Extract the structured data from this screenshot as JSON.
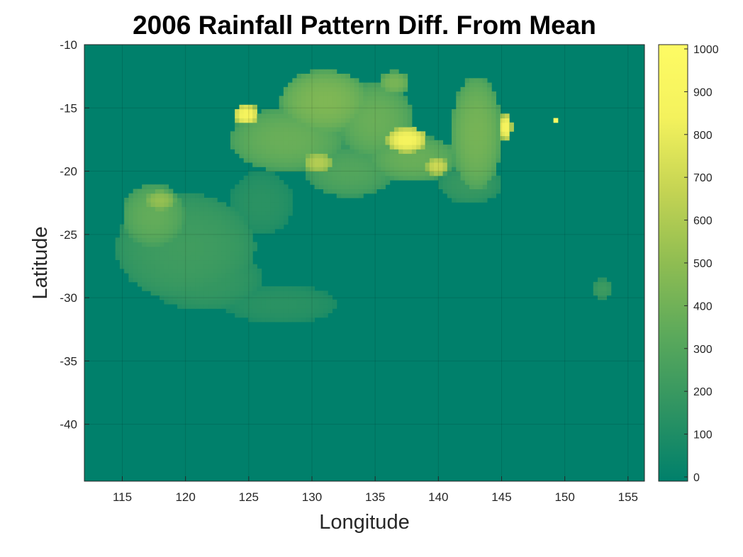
{
  "chart_data": {
    "type": "heatmap",
    "title": "2006 Rainfall Pattern Diff. From Mean",
    "xlabel": "Longitude",
    "ylabel": "Latitude",
    "xlim": [
      112,
      156.3
    ],
    "ylim": [
      -44.5,
      -10
    ],
    "xticks": [
      115,
      120,
      125,
      130,
      135,
      140,
      145,
      150,
      155
    ],
    "yticks": [
      -10,
      -15,
      -20,
      -25,
      -30,
      -35,
      -40
    ],
    "grid": true,
    "colorbar": {
      "location": "right",
      "limits": [
        0,
        1000
      ],
      "ticks": [
        0,
        100,
        200,
        300,
        400,
        500,
        600,
        700,
        800,
        900,
        1000
      ],
      "colormap": [
        "#00806b",
        "#2f9462",
        "#5ba95b",
        "#8fbd52",
        "#c5d453",
        "#f4f25d",
        "#fefb64"
      ]
    },
    "background_value": 0,
    "regions": [
      {
        "lon": 120,
        "lat": -26,
        "rlon": 5.5,
        "rlat": 4.2,
        "value": 230
      },
      {
        "lon": 117.5,
        "lat": -23.5,
        "rlon": 2.5,
        "rlat": 2.5,
        "value": 360
      },
      {
        "lon": 121.5,
        "lat": -28.5,
        "rlon": 4.5,
        "rlat": 2.5,
        "value": 190
      },
      {
        "lon": 127.5,
        "lat": -30.5,
        "rlon": 4.5,
        "rlat": 1.5,
        "value": 150
      },
      {
        "lon": 126,
        "lat": -22.5,
        "rlon": 2.5,
        "rlat": 2.5,
        "value": 150
      },
      {
        "lon": 128,
        "lat": -17.5,
        "rlon": 4.5,
        "rlat": 2.5,
        "value": 380
      },
      {
        "lon": 131,
        "lat": -14.5,
        "rlon": 3.5,
        "rlat": 2.5,
        "value": 450
      },
      {
        "lon": 135,
        "lat": -16,
        "rlon": 3.0,
        "rlat": 3.0,
        "value": 380
      },
      {
        "lon": 133,
        "lat": -20,
        "rlon": 3.5,
        "rlat": 2.0,
        "value": 300
      },
      {
        "lon": 138,
        "lat": -19,
        "rlon": 3.5,
        "rlat": 1.8,
        "value": 380
      },
      {
        "lon": 143,
        "lat": -17,
        "rlon": 2.0,
        "rlat": 4.5,
        "value": 420
      },
      {
        "lon": 142.5,
        "lat": -21,
        "rlon": 2.5,
        "rlat": 1.5,
        "value": 200
      },
      {
        "lon": 137.5,
        "lat": -17.5,
        "rlon": 1.6,
        "rlat": 1.0,
        "value": 860
      },
      {
        "lon": 124.8,
        "lat": -15.5,
        "rlon": 1.0,
        "rlat": 0.8,
        "value": 860
      },
      {
        "lon": 145.3,
        "lat": -16.5,
        "rlon": 0.5,
        "rlat": 1.0,
        "value": 880
      },
      {
        "lon": 139.9,
        "lat": -19.6,
        "rlon": 0.9,
        "rlat": 0.7,
        "value": 700
      },
      {
        "lon": 130.5,
        "lat": -19.3,
        "rlon": 1.2,
        "rlat": 0.8,
        "value": 620
      },
      {
        "lon": 118,
        "lat": -22.3,
        "rlon": 1.2,
        "rlat": 0.8,
        "value": 520
      },
      {
        "lon": 136.5,
        "lat": -13,
        "rlon": 1.2,
        "rlat": 0.9,
        "value": 430
      },
      {
        "lon": 153,
        "lat": -29.3,
        "rlon": 0.8,
        "rlat": 0.8,
        "value": 220
      },
      {
        "lon": 149.3,
        "lat": -16,
        "rlon": 0.15,
        "rlat": 0.15,
        "value": 1000
      }
    ]
  }
}
